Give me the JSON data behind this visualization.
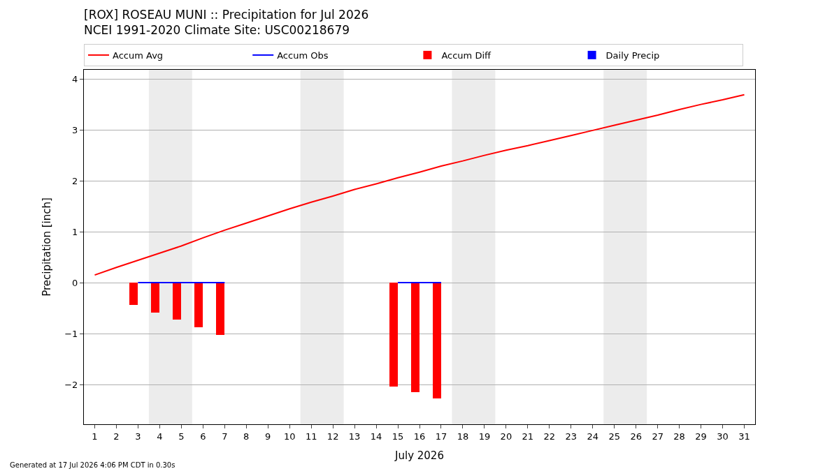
{
  "chart_data": {
    "type": "line",
    "title": "[ROX] ROSEAU MUNI :: Precipitation for Jul 2026",
    "subtitle": "NCEI 1991-2020 Climate Site: USC00218679",
    "xlabel": "July 2026",
    "ylabel": "Precipitation [inch]",
    "x": [
      1,
      2,
      3,
      4,
      5,
      6,
      7,
      8,
      9,
      10,
      11,
      12,
      13,
      14,
      15,
      16,
      17,
      18,
      19,
      20,
      21,
      22,
      23,
      24,
      25,
      26,
      27,
      28,
      29,
      30,
      31
    ],
    "series": [
      {
        "name": "Accum Avg",
        "color": "#ff0000",
        "values": [
          0.15,
          0.3,
          0.44,
          0.58,
          0.72,
          0.88,
          1.03,
          1.17,
          1.31,
          1.45,
          1.58,
          1.7,
          1.83,
          1.94,
          2.06,
          2.17,
          2.29,
          2.39,
          2.5,
          2.6,
          2.69,
          2.79,
          2.89,
          2.99,
          3.09,
          3.19,
          3.29,
          3.4,
          3.5,
          3.59,
          3.69
        ]
      },
      {
        "name": "Accum Obs",
        "color": "#0000ff",
        "values": [
          null,
          null,
          0,
          0,
          0,
          0,
          0,
          null,
          null,
          null,
          null,
          null,
          null,
          null,
          0,
          0,
          0,
          null,
          null,
          null,
          null,
          null,
          null,
          null,
          null,
          null,
          null,
          null,
          null,
          null,
          null
        ]
      },
      {
        "name": "Accum Diff",
        "type": "bar",
        "color": "#ff0000",
        "values": [
          null,
          null,
          -0.44,
          -0.59,
          -0.73,
          -0.88,
          -1.03,
          null,
          null,
          null,
          null,
          null,
          null,
          null,
          -2.04,
          -2.15,
          -2.27,
          null,
          null,
          null,
          null,
          null,
          null,
          null,
          null,
          null,
          null,
          null,
          null,
          null,
          null
        ]
      },
      {
        "name": "Daily Precip",
        "type": "bar",
        "color": "#0000ff",
        "values": [
          null,
          null,
          0,
          0,
          0,
          0,
          0,
          null,
          null,
          null,
          null,
          null,
          null,
          null,
          0,
          0,
          0,
          null,
          null,
          null,
          null,
          null,
          null,
          null,
          null,
          null,
          null,
          null,
          null,
          null,
          null
        ]
      }
    ],
    "xlim": [
      0.5,
      31.5
    ],
    "xticks": [
      1,
      2,
      3,
      4,
      5,
      6,
      7,
      8,
      9,
      10,
      11,
      12,
      13,
      14,
      15,
      16,
      17,
      18,
      19,
      20,
      21,
      22,
      23,
      24,
      25,
      26,
      27,
      28,
      29,
      30,
      31
    ],
    "ylim": [
      -2.78,
      4.18
    ],
    "yticks": [
      {
        "value": -2,
        "label": "−2"
      },
      {
        "value": -1,
        "label": "−1"
      },
      0,
      1,
      2,
      3,
      4
    ],
    "bands": [
      {
        "axis": "x",
        "from": 3.5,
        "to": 5.5,
        "color": "#ececec"
      },
      {
        "axis": "x",
        "from": 10.5,
        "to": 12.5,
        "color": "#ececec"
      },
      {
        "axis": "x",
        "from": 17.5,
        "to": 19.5,
        "color": "#ececec"
      },
      {
        "axis": "x",
        "from": 24.5,
        "to": 26.5,
        "color": "#ececec"
      }
    ],
    "grid": "y",
    "legend": "top",
    "line_style": "solid",
    "marker": "none",
    "annotations": [
      "Generated at 17 Jul 2026 4:06 PM CDT in 0.30s"
    ]
  }
}
